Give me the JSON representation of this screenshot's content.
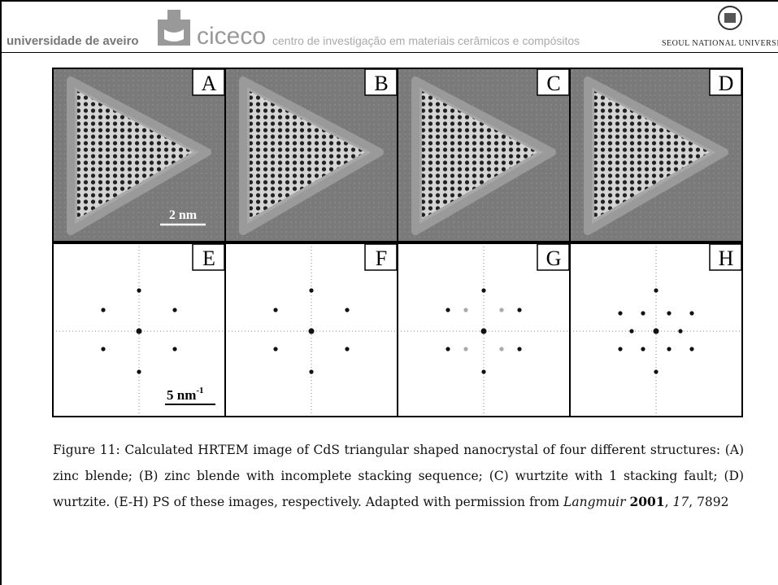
{
  "header": {
    "left": "universidade de aveiro",
    "brand": "ciceco",
    "subtitle": "centro de investigação em materiais cerâmicos e compósitos",
    "right": "SEOUL NATIONAL UNIVERSIT"
  },
  "figure": {
    "panels": [
      "A",
      "B",
      "C",
      "D",
      "E",
      "F",
      "G",
      "H"
    ],
    "scale_bar_top": "2 nm",
    "scale_bar_bottom": {
      "text": "5 nm",
      "sup": "-1"
    }
  },
  "caption": [
    {
      "text": "Figure 11: Calculated HRTEM image of CdS triangular shaped nanocrystal of four different structures: (A) zinc blende; (B) zinc blende with incomplete stacking sequence; (C) wurtzite with 1 stacking fault; (D) wurtzite. (E-H) PS of these images, respectively. Adapted with permission from ",
      "style": "normal"
    },
    {
      "text": "Langmuir ",
      "style": "italic"
    },
    {
      "text": "2001",
      "style": "bold"
    },
    {
      "text": ", ",
      "style": "normal"
    },
    {
      "text": "17",
      "style": "italic"
    },
    {
      "text": ", 7892",
      "style": "normal"
    }
  ]
}
